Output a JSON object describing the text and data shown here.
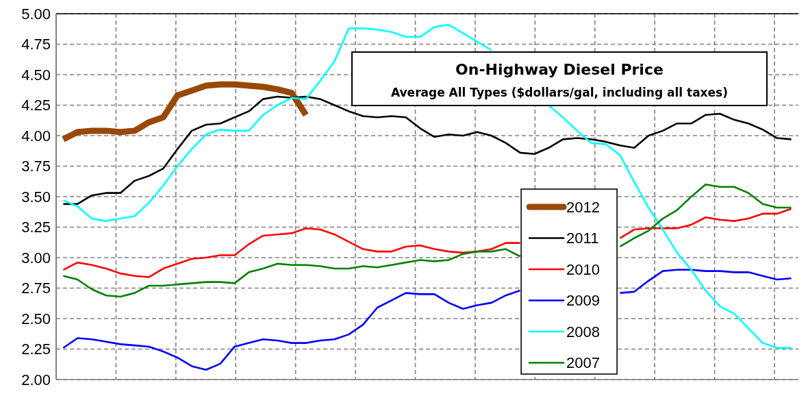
{
  "chart_data": {
    "type": "line",
    "title": "On-Highway Diesel Price",
    "subtitle": "Average All Types ($dollars/gal, including all taxes)",
    "categories": [
      null,
      null,
      null,
      null,
      null,
      null,
      null,
      null,
      null,
      null,
      null,
      null,
      null,
      null,
      null,
      null,
      null,
      null,
      null,
      null,
      null,
      null,
      null,
      null,
      null,
      null,
      null,
      null,
      null,
      null,
      null,
      null,
      null,
      null,
      null,
      null,
      null,
      null,
      null,
      null,
      null,
      null,
      null,
      null,
      null,
      null,
      null,
      null,
      null,
      null,
      null,
      null
    ],
    "series": [
      {
        "name": "2012",
        "color": "#984807",
        "values": [
          3.97,
          4.03,
          4.04,
          4.04,
          4.03,
          4.04,
          4.11,
          4.15,
          4.33,
          4.37,
          4.41,
          4.42,
          4.42,
          4.41,
          4.4,
          4.38,
          4.35,
          4.17,
          null,
          null,
          null,
          null,
          null,
          null,
          null,
          null,
          null,
          null,
          null,
          null,
          null,
          null,
          null,
          null,
          null,
          null,
          null,
          null,
          null,
          null,
          null,
          null,
          null,
          null,
          null,
          null,
          null,
          null,
          null,
          null,
          null,
          null
        ]
      },
      {
        "name": "2011",
        "color": "#000000",
        "values": [
          3.44,
          3.44,
          3.51,
          3.53,
          3.53,
          3.63,
          3.67,
          3.73,
          3.89,
          4.04,
          4.09,
          4.1,
          4.15,
          4.2,
          4.3,
          4.32,
          4.31,
          4.32,
          4.3,
          4.25,
          4.2,
          4.16,
          4.15,
          4.16,
          4.15,
          4.06,
          3.99,
          4.01,
          4.0,
          4.03,
          4.0,
          3.94,
          3.86,
          3.85,
          3.9,
          3.97,
          3.98,
          3.97,
          3.95,
          3.92,
          3.9,
          4.0,
          4.04,
          4.1,
          4.1,
          4.17,
          4.18,
          4.13,
          4.1,
          4.05,
          3.98,
          3.97
        ]
      },
      {
        "name": "2010",
        "color": "#ff0000",
        "values": [
          2.9,
          2.96,
          2.94,
          2.91,
          2.87,
          2.85,
          2.84,
          2.91,
          2.95,
          2.99,
          3.0,
          3.02,
          3.02,
          3.11,
          3.18,
          3.19,
          3.2,
          3.24,
          3.23,
          3.19,
          3.13,
          3.07,
          3.05,
          3.05,
          3.09,
          3.1,
          3.07,
          3.05,
          3.04,
          3.05,
          3.07,
          3.12,
          3.12,
          null,
          null,
          null,
          null,
          null,
          null,
          3.16,
          3.23,
          3.24,
          3.24,
          3.24,
          3.27,
          3.33,
          3.31,
          3.3,
          3.32,
          3.36,
          3.36,
          3.4
        ]
      },
      {
        "name": "2009",
        "color": "#0000ff",
        "values": [
          2.26,
          2.34,
          2.33,
          2.31,
          2.29,
          2.28,
          2.27,
          2.23,
          2.18,
          2.11,
          2.08,
          2.13,
          2.27,
          2.3,
          2.33,
          2.32,
          2.3,
          2.3,
          2.32,
          2.33,
          2.37,
          2.45,
          2.59,
          2.65,
          2.71,
          2.7,
          2.7,
          2.63,
          2.58,
          2.61,
          2.63,
          2.69,
          2.73,
          null,
          null,
          null,
          null,
          null,
          null,
          2.71,
          2.72,
          2.81,
          2.89,
          2.9,
          2.9,
          2.89,
          2.89,
          2.88,
          2.88,
          2.85,
          2.82,
          2.83
        ]
      },
      {
        "name": "2008",
        "color": "#00ffff",
        "values": [
          3.47,
          3.42,
          3.32,
          3.3,
          3.32,
          3.34,
          3.45,
          3.59,
          3.75,
          3.89,
          4.01,
          4.05,
          4.04,
          4.04,
          4.17,
          4.25,
          4.31,
          4.3,
          4.45,
          4.61,
          4.88,
          4.88,
          4.87,
          4.85,
          4.81,
          4.81,
          4.89,
          4.91,
          4.84,
          4.77,
          4.7,
          null,
          null,
          null,
          4.25,
          4.15,
          4.04,
          3.94,
          3.93,
          3.84,
          3.62,
          3.41,
          3.23,
          3.04,
          2.9,
          2.73,
          2.6,
          2.54,
          2.42,
          2.3,
          2.26,
          2.26
        ]
      },
      {
        "name": "2007",
        "color": "#008000",
        "values": [
          2.85,
          2.82,
          2.74,
          2.69,
          2.68,
          2.71,
          2.77,
          2.77,
          2.78,
          2.79,
          2.8,
          2.8,
          2.79,
          2.88,
          2.91,
          2.95,
          2.94,
          2.94,
          2.93,
          2.91,
          2.91,
          2.93,
          2.92,
          2.94,
          2.96,
          2.98,
          2.97,
          2.98,
          3.03,
          3.05,
          3.05,
          3.07,
          3.01,
          null,
          null,
          null,
          null,
          null,
          null,
          3.09,
          3.16,
          3.22,
          3.32,
          3.39,
          3.5,
          3.6,
          3.58,
          3.58,
          3.53,
          3.44,
          3.41,
          3.41
        ]
      }
    ],
    "ylim": [
      2,
      5
    ],
    "yticks": [
      {
        "value": 2,
        "label": "2.00"
      },
      {
        "value": 2.25,
        "label": "2.25"
      },
      {
        "value": 2.5,
        "label": "2.50"
      },
      {
        "value": 2.75,
        "label": "2.75"
      },
      {
        "value": 3,
        "label": "3.00"
      },
      {
        "value": 3.25,
        "label": "3.25"
      },
      {
        "value": 3.5,
        "label": "3.50"
      },
      {
        "value": 3.75,
        "label": "3.75"
      },
      {
        "value": 4,
        "label": "4.00"
      },
      {
        "value": 4.25,
        "label": "4.25"
      },
      {
        "value": 4.5,
        "label": "4.50"
      },
      {
        "value": 4.75,
        "label": "4.75"
      },
      {
        "value": 5,
        "label": "5.00"
      }
    ],
    "tick_labels": "y",
    "grid": true,
    "legend": "bottom right",
    "marker": "none",
    "line_style": "solid"
  }
}
